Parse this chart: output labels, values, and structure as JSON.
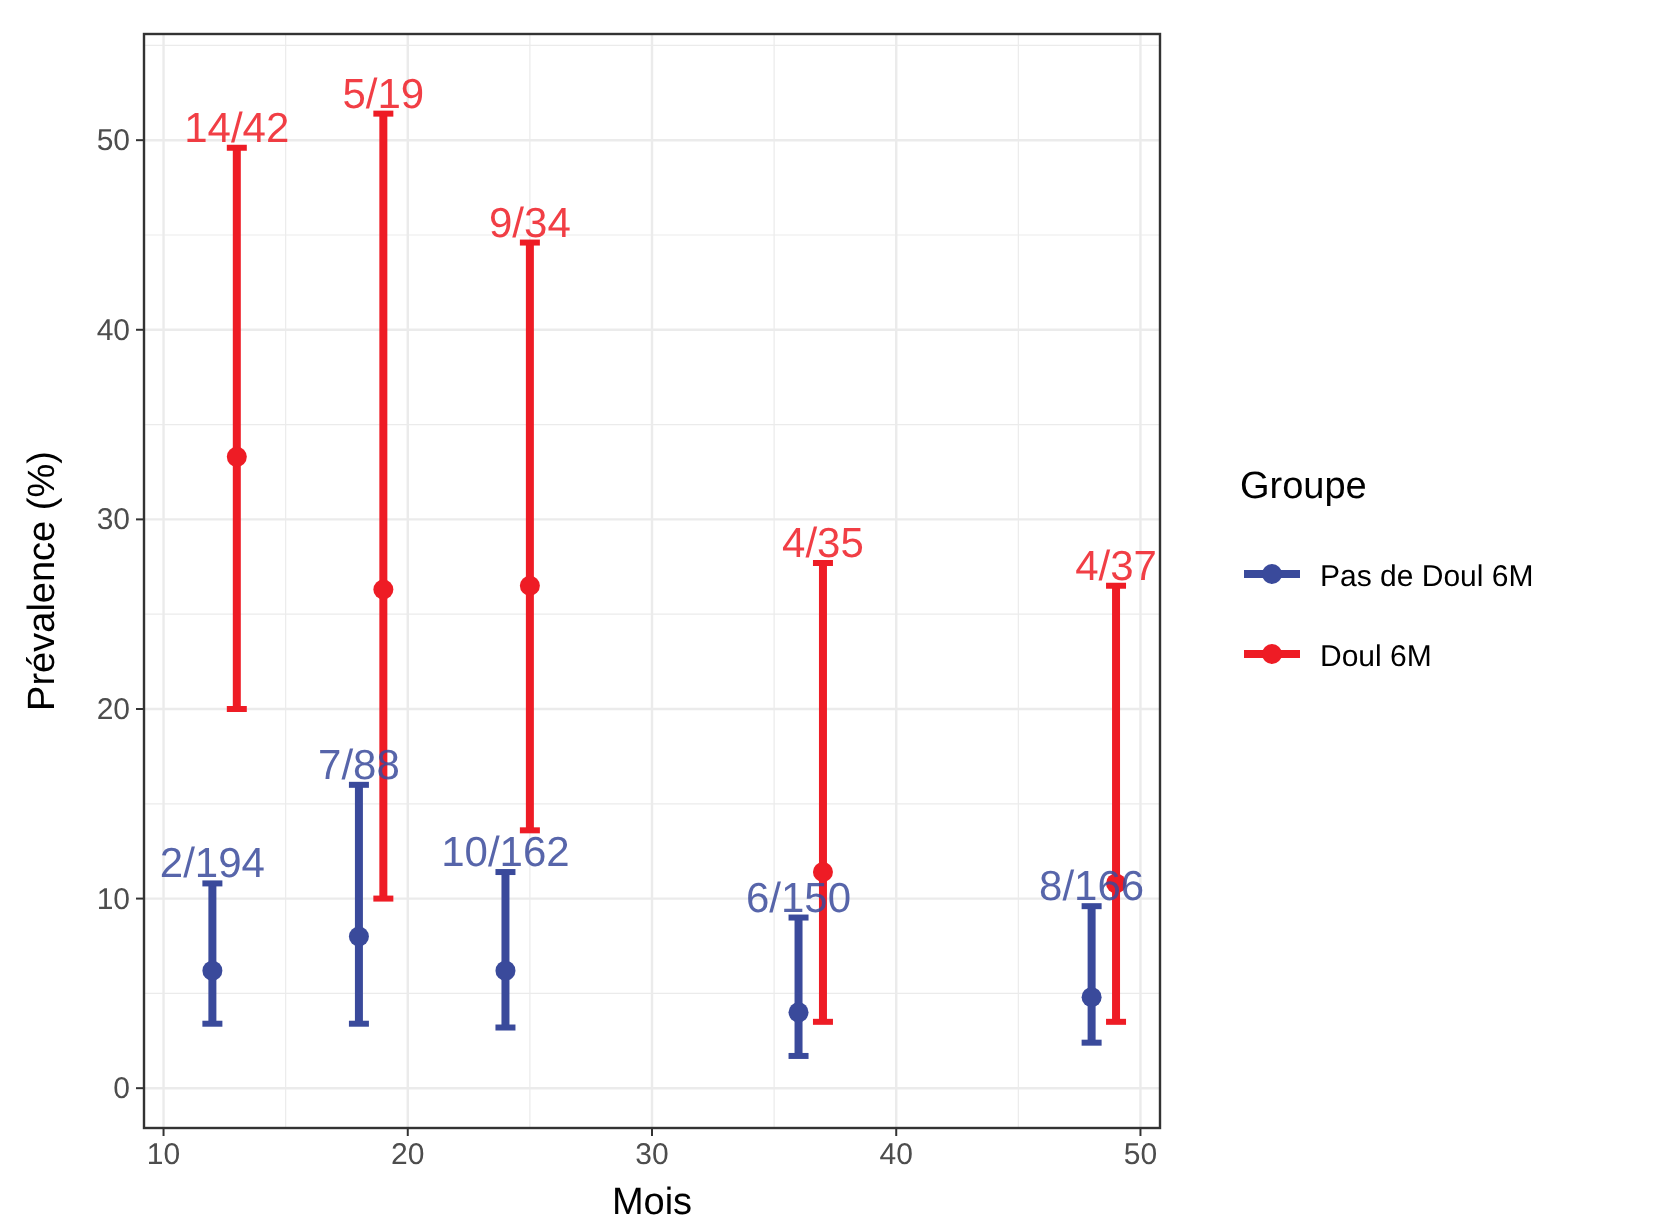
{
  "chart_data": {
    "type": "scatter",
    "xlabel": "Mois",
    "ylabel": "Prévalence (%)",
    "legend_title": "Groupe",
    "legend": "right",
    "grid": true,
    "marker": "circle",
    "xlim": [
      9.2,
      50.8
    ],
    "xticks": [
      10,
      20,
      30,
      40,
      50
    ],
    "ylim": [
      -2.1,
      55.6
    ],
    "yticks": [
      0,
      10,
      20,
      30,
      40,
      50
    ],
    "series": [
      {
        "name": "Pas de Doul 6M",
        "color": "#3a4a9b",
        "x": [
          12,
          18,
          24,
          36,
          48
        ],
        "values": [
          6.2,
          8.0,
          6.2,
          4.0,
          4.8
        ],
        "errors": [
          [
            3.4,
            10.8
          ],
          [
            3.4,
            16.0
          ],
          [
            3.2,
            11.4
          ],
          [
            1.7,
            9.0
          ],
          [
            2.4,
            9.6
          ]
        ]
      },
      {
        "name": "Doul 6M",
        "color": "#ee1c25",
        "x": [
          13,
          19,
          25,
          37,
          49
        ],
        "values": [
          33.3,
          26.3,
          26.5,
          11.4,
          10.8
        ],
        "errors": [
          [
            20.0,
            49.6
          ],
          [
            10.0,
            51.4
          ],
          [
            13.6,
            44.6
          ],
          [
            3.5,
            27.7
          ],
          [
            3.5,
            26.5
          ]
        ]
      }
    ],
    "annotations": [
      {
        "text": "2/194",
        "x": 12,
        "y": 10.8
      },
      {
        "text": "7/88",
        "x": 18,
        "y": 16.0
      },
      {
        "text": "10/162",
        "x": 24,
        "y": 11.4
      },
      {
        "text": "6/150",
        "x": 36,
        "y": 9.0
      },
      {
        "text": "8/166",
        "x": 48,
        "y": 9.6
      },
      {
        "text": "14/42",
        "x": 13,
        "y": 49.6
      },
      {
        "text": "5/19",
        "x": 19,
        "y": 51.4
      },
      {
        "text": "9/34",
        "x": 25,
        "y": 44.6
      },
      {
        "text": "4/35",
        "x": 37,
        "y": 27.7
      },
      {
        "text": "4/37",
        "x": 49,
        "y": 26.5
      }
    ]
  }
}
